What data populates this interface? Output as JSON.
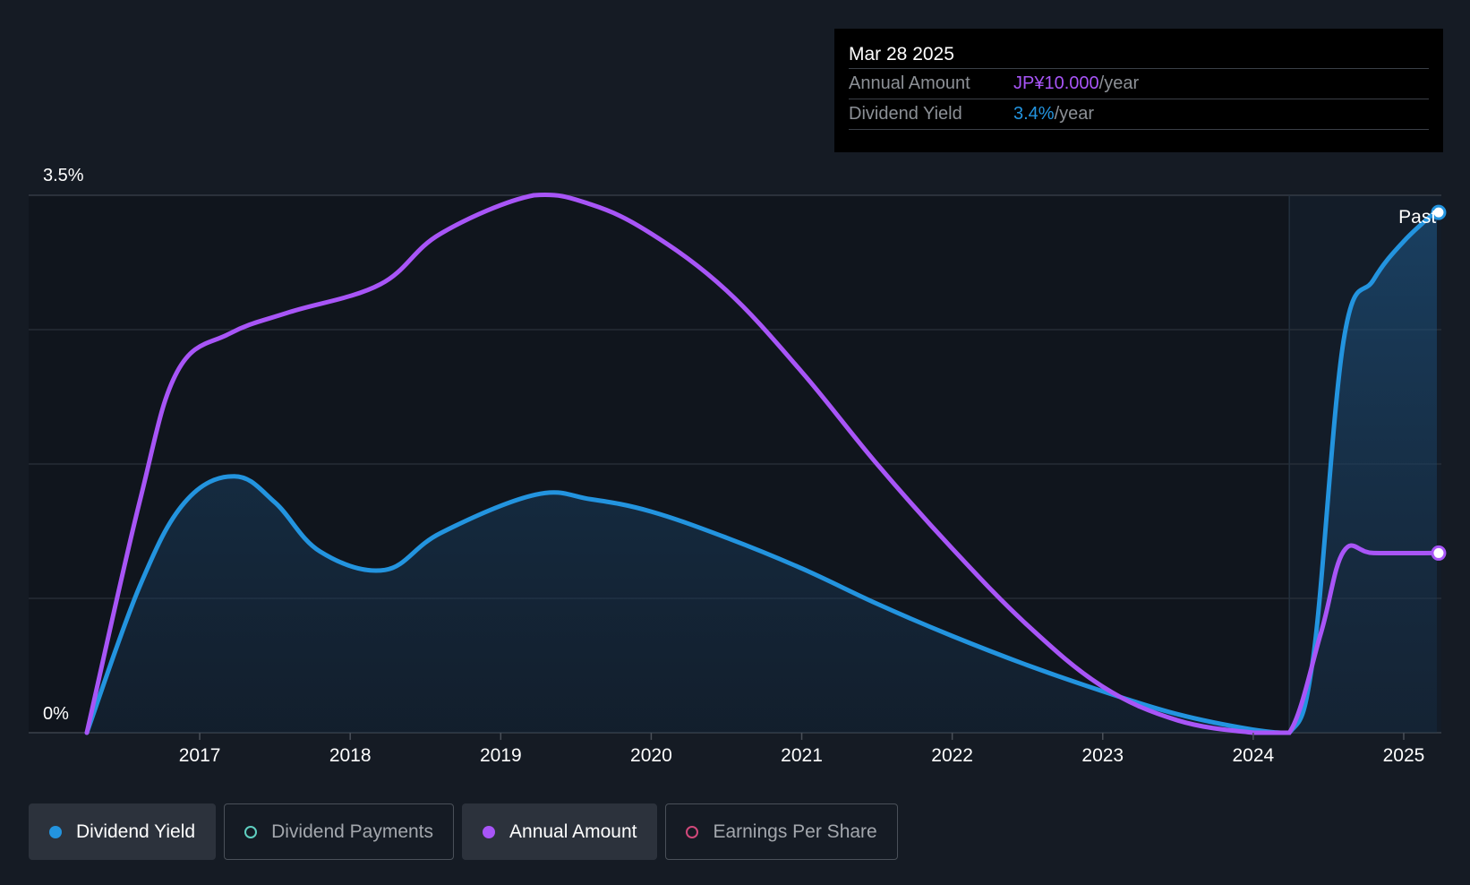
{
  "tooltip": {
    "date": "Mar 28 2025",
    "rows": [
      {
        "label": "Annual Amount",
        "value": "JP¥10.000",
        "unit": "/year",
        "color": "#a855f7"
      },
      {
        "label": "Dividend Yield",
        "value": "3.4%",
        "unit": "/year",
        "color": "#2394df"
      }
    ]
  },
  "legend": [
    {
      "label": "Dividend Yield",
      "color": "#2394df",
      "filled": true,
      "active": true
    },
    {
      "label": "Dividend Payments",
      "color": "#5fcfc0",
      "filled": false,
      "active": false
    },
    {
      "label": "Annual Amount",
      "color": "#a855f7",
      "filled": true,
      "active": true
    },
    {
      "label": "Earnings Per Share",
      "color": "#d0487a",
      "filled": false,
      "active": false
    }
  ],
  "colors": {
    "background": "#151b24",
    "plot_area": "#10151d",
    "past_area": "#131c28",
    "grid": "#2a313b",
    "yield_line": "#2394df",
    "amount_line": "#a855f7"
  },
  "chart_data": {
    "type": "line",
    "title": "",
    "xlabel": "",
    "ylabel": "",
    "x_range": [
      2016.25,
      2025.25
    ],
    "ylim": [
      0,
      3.5
    ],
    "y_tick_labels": [
      "3.5%",
      "0%"
    ],
    "x_ticks": [
      2017,
      2018,
      2019,
      2020,
      2021,
      2022,
      2023,
      2024,
      2025
    ],
    "x_tick_labels": [
      "2017",
      "2018",
      "2019",
      "2020",
      "2021",
      "2022",
      "2023",
      "2024",
      "2025"
    ],
    "past_marker": {
      "x": 2024.24,
      "label": "Past"
    },
    "series": [
      {
        "name": "Dividend Yield",
        "unit": "%",
        "filled_area": true,
        "points": [
          [
            2016.25,
            0.0
          ],
          [
            2016.6,
            0.95
          ],
          [
            2016.9,
            1.5
          ],
          [
            2017.23,
            1.67
          ],
          [
            2017.5,
            1.5
          ],
          [
            2017.8,
            1.18
          ],
          [
            2018.23,
            1.06
          ],
          [
            2018.6,
            1.3
          ],
          [
            2019.23,
            1.55
          ],
          [
            2019.6,
            1.52
          ],
          [
            2020.0,
            1.44
          ],
          [
            2020.5,
            1.27
          ],
          [
            2021.0,
            1.07
          ],
          [
            2021.5,
            0.84
          ],
          [
            2022.0,
            0.63
          ],
          [
            2022.5,
            0.44
          ],
          [
            2023.0,
            0.27
          ],
          [
            2023.5,
            0.12
          ],
          [
            2024.0,
            0.02
          ],
          [
            2024.24,
            0.0
          ],
          [
            2024.4,
            0.5
          ],
          [
            2024.6,
            2.55
          ],
          [
            2024.8,
            2.95
          ],
          [
            2025.0,
            3.2
          ],
          [
            2025.22,
            3.4
          ]
        ]
      },
      {
        "name": "Annual Amount",
        "unit": "JP¥",
        "filled_area": false,
        "points": [
          [
            2016.25,
            0.0
          ],
          [
            2016.6,
            1.5
          ],
          [
            2016.85,
            2.35
          ],
          [
            2017.2,
            2.6
          ],
          [
            2017.6,
            2.74
          ],
          [
            2018.2,
            2.92
          ],
          [
            2018.6,
            3.25
          ],
          [
            2019.22,
            3.5
          ],
          [
            2019.6,
            3.44
          ],
          [
            2020.0,
            3.25
          ],
          [
            2020.5,
            2.88
          ],
          [
            2021.0,
            2.35
          ],
          [
            2021.5,
            1.75
          ],
          [
            2022.0,
            1.2
          ],
          [
            2022.5,
            0.7
          ],
          [
            2023.0,
            0.3
          ],
          [
            2023.5,
            0.08
          ],
          [
            2024.0,
            0.0
          ],
          [
            2024.24,
            0.0
          ],
          [
            2024.45,
            0.65
          ],
          [
            2024.6,
            1.18
          ],
          [
            2024.8,
            1.17
          ],
          [
            2025.22,
            1.17
          ]
        ]
      }
    ]
  }
}
